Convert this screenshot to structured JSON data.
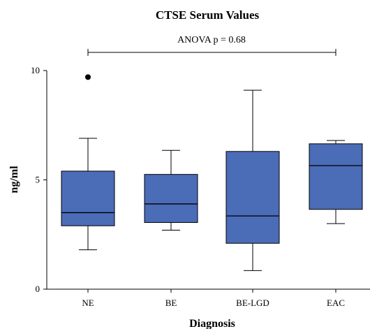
{
  "chart_data": {
    "type": "box",
    "title": "CTSE Serum Values",
    "xlabel": "Diagnosis",
    "ylabel": "ng/ml",
    "ylim": [
      0,
      10
    ],
    "yticks": [
      0,
      5,
      10
    ],
    "categories": [
      "NE",
      "BE",
      "BE-LGD",
      "EAC"
    ],
    "boxes": [
      {
        "category": "NE",
        "whisker_low": 1.8,
        "q1": 2.9,
        "median": 3.5,
        "q3": 5.4,
        "whisker_high": 6.9,
        "outliers": [
          9.7
        ]
      },
      {
        "category": "BE",
        "whisker_low": 2.7,
        "q1": 3.05,
        "median": 3.9,
        "q3": 5.25,
        "whisker_high": 6.35,
        "outliers": []
      },
      {
        "category": "BE-LGD",
        "whisker_low": 0.85,
        "q1": 2.1,
        "median": 3.35,
        "q3": 6.3,
        "whisker_high": 9.1,
        "outliers": []
      },
      {
        "category": "EAC",
        "whisker_low": 3.0,
        "q1": 3.65,
        "median": 5.65,
        "q3": 6.65,
        "whisker_high": 6.8,
        "outliers": []
      }
    ],
    "annotation": {
      "text": "ANOVA p = 0.68",
      "spans": [
        "NE",
        "EAC"
      ]
    },
    "box_color": "#4b6cb7",
    "grid": false,
    "legend": "none"
  }
}
